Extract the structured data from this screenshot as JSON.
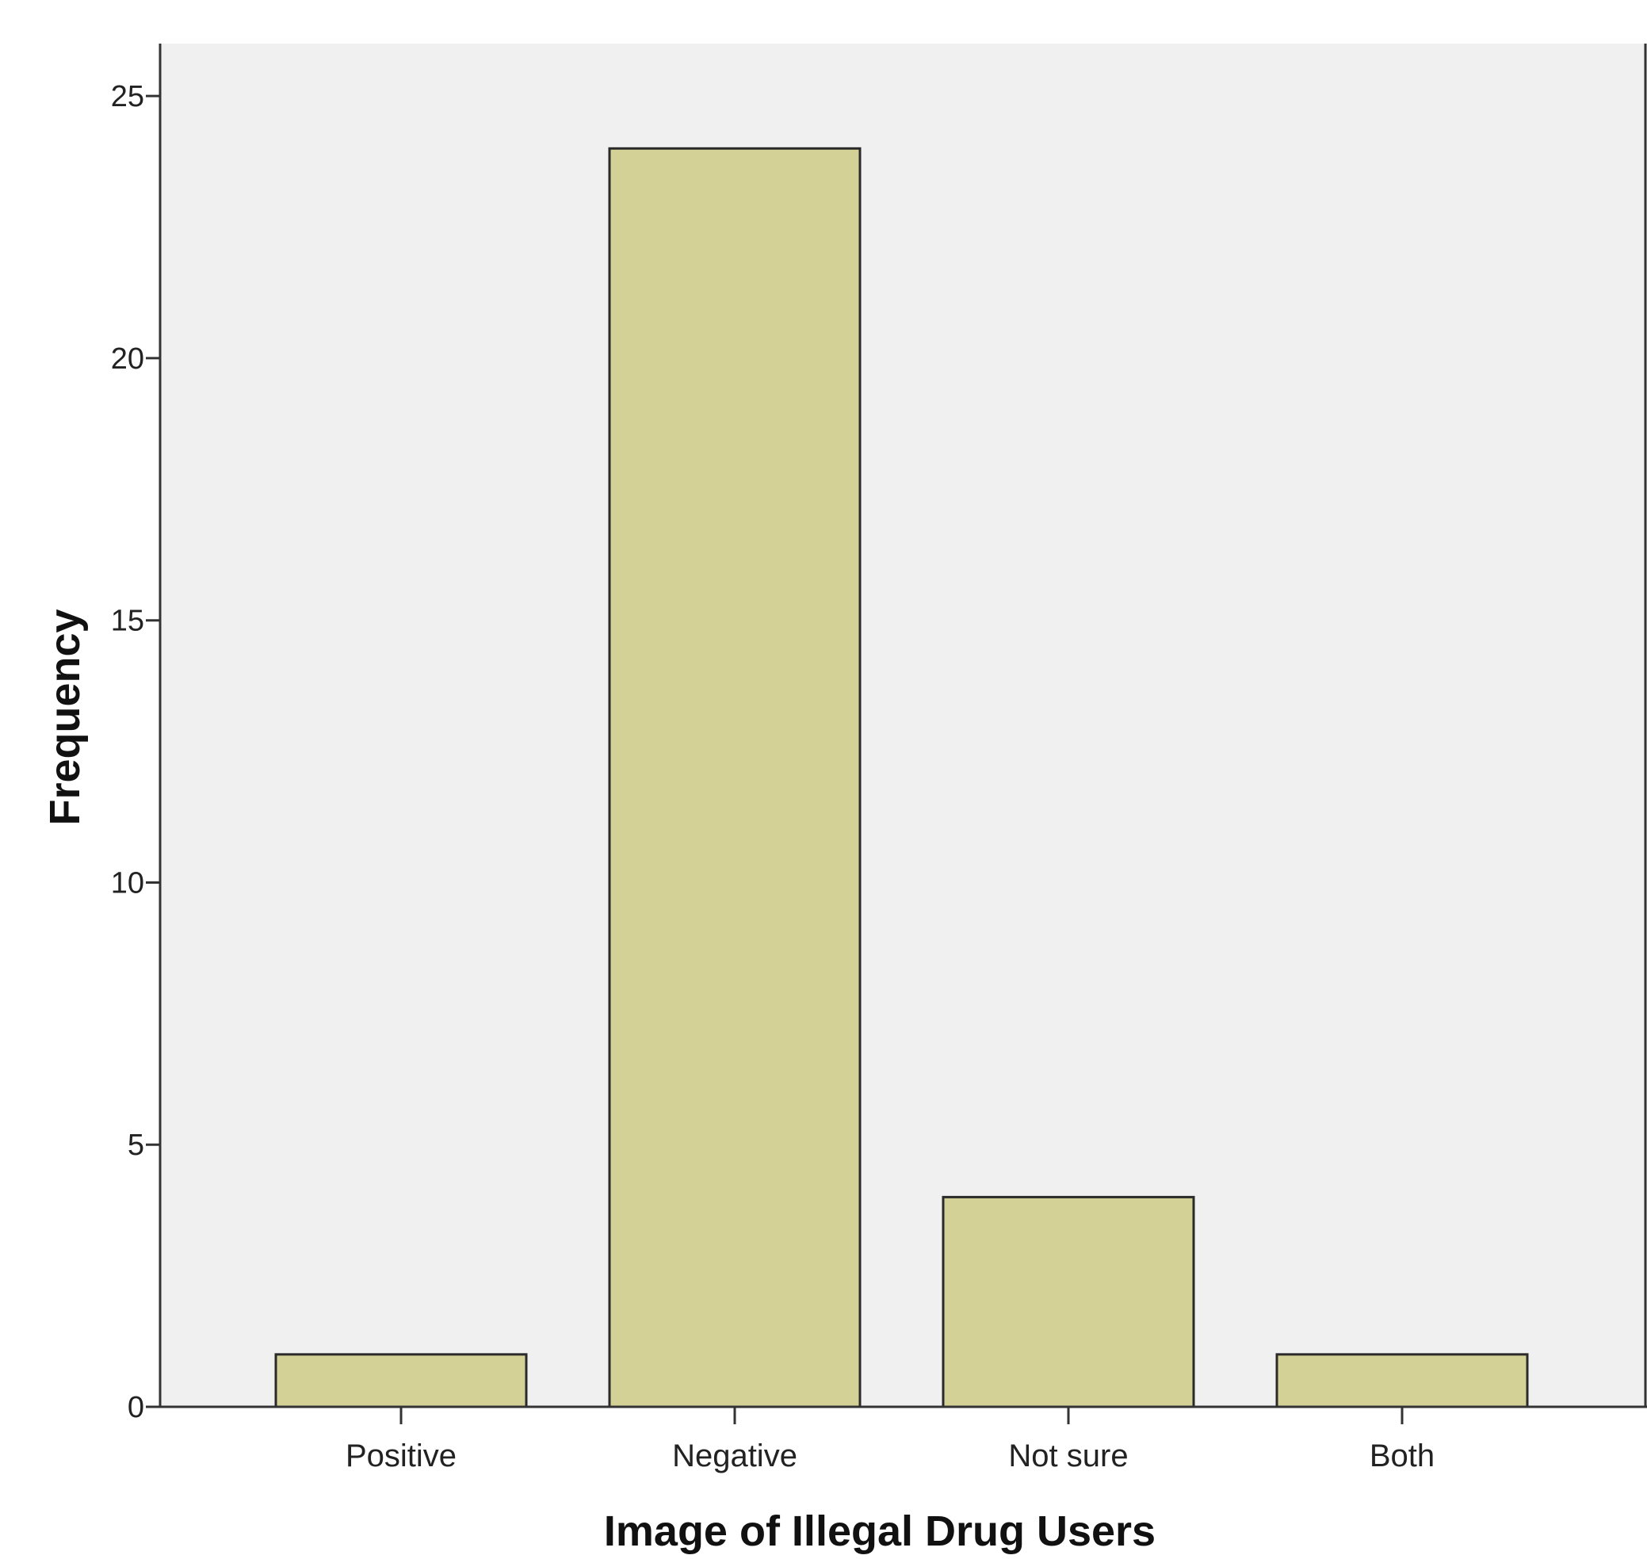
{
  "chart_data": {
    "type": "bar",
    "title": "",
    "xlabel": "Image of Illegal Drug Users",
    "ylabel": "Frequency",
    "categories": [
      "Positive",
      "Negative",
      "Not sure",
      "Both"
    ],
    "values": [
      1,
      24,
      4,
      1
    ],
    "ylim": [
      0,
      26
    ],
    "yticks": [
      0,
      5,
      10,
      15,
      20,
      25
    ],
    "grid": false,
    "legend": "none",
    "colors": {
      "bar_fill": "#d3d196",
      "bar_stroke": "#2a2a2a",
      "plot_background": "#f0f0f0",
      "axis": "#333333"
    }
  }
}
